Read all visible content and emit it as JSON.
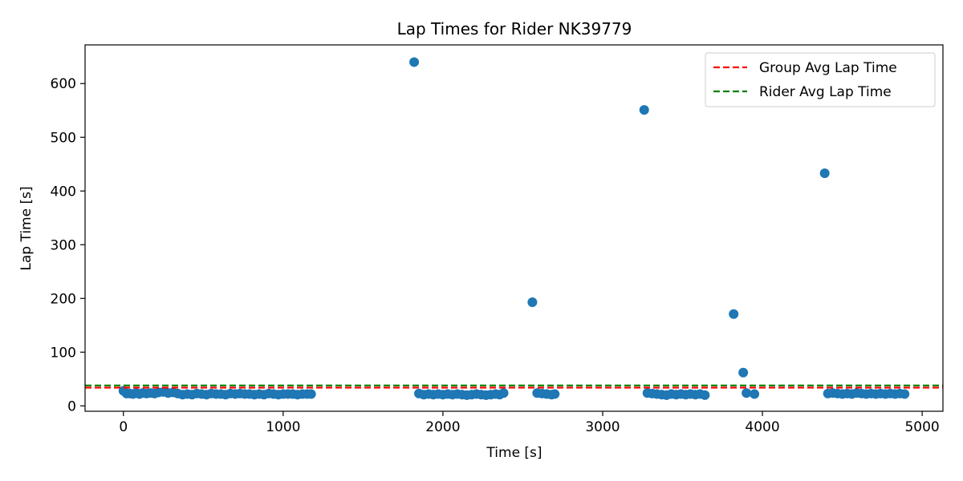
{
  "chart_data": {
    "type": "scatter",
    "title": "Lap Times for Rider NK39779",
    "xlabel": "Time [s]",
    "ylabel": "Lap Time [s]",
    "xlim": [
      -240,
      5130
    ],
    "ylim": [
      -10,
      672
    ],
    "xticks": [
      0,
      1000,
      2000,
      3000,
      4000,
      5000
    ],
    "yticks": [
      0,
      100,
      200,
      300,
      400,
      500,
      600
    ],
    "point_color": "#1f77b4",
    "grid": false,
    "legend_position": "top-right",
    "reference_lines": [
      {
        "name": "Group Avg Lap Time",
        "y": 34,
        "color": "#ff0000",
        "style": "dashed"
      },
      {
        "name": "Rider Avg Lap Time",
        "y": 38,
        "color": "#008000",
        "style": "dashed"
      }
    ],
    "series": [
      {
        "x": [
          0,
          20,
          40,
          60,
          80,
          100,
          120,
          145,
          170,
          195,
          220,
          250,
          280,
          310,
          340,
          370,
          400,
          430,
          460,
          490,
          520,
          550,
          580,
          610,
          640,
          670,
          700,
          730,
          760,
          790,
          820,
          850,
          880,
          910,
          940,
          970,
          1000,
          1030,
          1060,
          1090,
          1120,
          1150,
          1175,
          1820,
          1850,
          1880,
          1910,
          1940,
          1970,
          2000,
          2030,
          2060,
          2090,
          2120,
          2150,
          2180,
          2210,
          2240,
          2270,
          2300,
          2330,
          2355,
          2380,
          2560,
          2590,
          2620,
          2650,
          2680,
          2700,
          3260,
          3280,
          3310,
          3340,
          3370,
          3400,
          3430,
          3460,
          3490,
          3520,
          3550,
          3580,
          3610,
          3640,
          3820,
          3880,
          3900,
          3950,
          4390,
          4410,
          4440,
          4470,
          4500,
          4530,
          4560,
          4590,
          4620,
          4650,
          4680,
          4710,
          4740,
          4770,
          4800,
          4830,
          4860,
          4890
        ],
        "y": [
          28,
          23,
          23,
          22,
          24,
          22,
          24,
          23,
          24,
          23,
          25,
          26,
          24,
          25,
          23,
          21,
          22,
          21,
          23,
          22,
          21,
          23,
          22,
          22,
          21,
          23,
          22,
          23,
          22,
          22,
          21,
          22,
          21,
          23,
          22,
          21,
          22,
          22,
          22,
          21,
          22,
          22,
          22,
          640,
          23,
          21,
          22,
          21,
          22,
          21,
          22,
          21,
          22,
          21,
          20,
          21,
          22,
          21,
          20,
          21,
          22,
          21,
          24,
          193,
          24,
          23,
          22,
          21,
          22,
          551,
          24,
          23,
          22,
          21,
          20,
          22,
          21,
          22,
          21,
          22,
          21,
          22,
          20,
          171,
          62,
          24,
          22,
          433,
          23,
          24,
          23,
          22,
          23,
          22,
          24,
          23,
          22,
          23,
          22,
          23,
          22,
          23,
          22,
          23,
          22
        ]
      }
    ]
  }
}
